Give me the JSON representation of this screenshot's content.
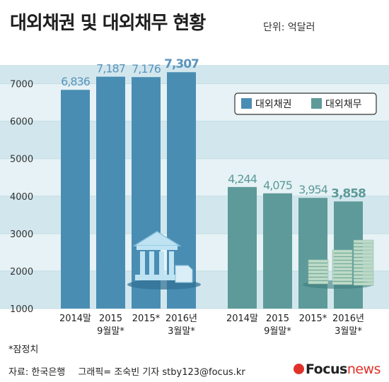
{
  "header": {
    "title": "대외채권 및 대외채무 현황",
    "unit": "단위: 억달러"
  },
  "footnote": "*잠정치",
  "credits": {
    "source": "자료: 한국은행",
    "graphic": "그래픽= 조숙빈 기자 stby123@focus.kr"
  },
  "brand": {
    "focus": "Focus",
    "news": "news"
  },
  "colors": {
    "claims_bar": "#4a8db3",
    "debt_bar": "#5e9a9a",
    "band_dark": "#d2e7ed",
    "band_light": "#e6f2f5",
    "label_claims": "#5b95bc",
    "label_debt": "#5e9a9a",
    "brand_red": "#e0322a"
  },
  "icons": {
    "claims_group": "bank-building-icon",
    "debt_group": "money-stack-icon"
  },
  "chart_data": {
    "type": "bar",
    "ylim": [
      1000,
      7500
    ],
    "yticks": [
      "1000",
      "2000",
      "3000",
      "4000",
      "5000",
      "6000",
      "7000"
    ],
    "legend": {
      "placement": "top-right",
      "items": [
        "대외채권",
        "대외채무"
      ]
    },
    "series": [
      {
        "name": "대외채권",
        "categories": [
          "2014말",
          "2015 9월말*",
          "2015*",
          "2016년 3월말*"
        ],
        "values": [
          6836,
          7187,
          7176,
          7307
        ],
        "labels": [
          "6,836",
          "7,187",
          "7,176",
          "7,307"
        ]
      },
      {
        "name": "대외채무",
        "categories": [
          "2014말",
          "2015 9월말*",
          "2015*",
          "2016년 3월말*"
        ],
        "values": [
          4244,
          4075,
          3954,
          3858
        ],
        "labels": [
          "4,244",
          "4,075",
          "3,954",
          "3,858"
        ]
      }
    ]
  }
}
